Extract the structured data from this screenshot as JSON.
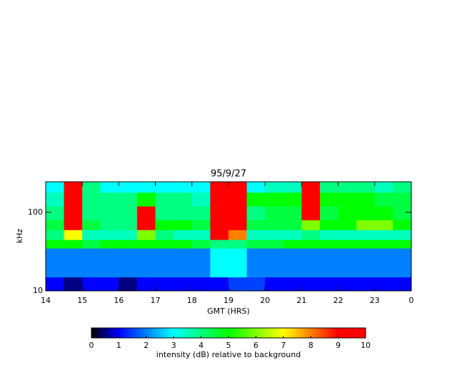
{
  "chart_data": {
    "type": "heatmap",
    "title": "95/9/27",
    "xlabel": "GMT (HRS)",
    "ylabel": "kHz",
    "xlim": [
      14,
      24
    ],
    "xticks": [
      14,
      15,
      16,
      17,
      18,
      19,
      20,
      21,
      22,
      23,
      {
        "value": 24,
        "label": "0"
      }
    ],
    "ylim": [
      10,
      245
    ],
    "yticks": [
      10,
      100
    ],
    "log_y": true,
    "x_edges": [
      14,
      14.5,
      15,
      15.5,
      16,
      16.5,
      17,
      17.5,
      18,
      18.5,
      19,
      19.5,
      20,
      20.5,
      21,
      21.5,
      22,
      22.5,
      23,
      23.5,
      24
    ],
    "y_edges": [
      10,
      15,
      35,
      45,
      60,
      80,
      120,
      180,
      245
    ],
    "z": [
      [
        1,
        0.5,
        1,
        1,
        0.5,
        1,
        1,
        1,
        1,
        1,
        1.5,
        1.5,
        1,
        1,
        1,
        1,
        1,
        1,
        1,
        1
      ],
      [
        2,
        2,
        2,
        2,
        2,
        2,
        2,
        2,
        2,
        3,
        3,
        2,
        2,
        2,
        2,
        2,
        2,
        2,
        2,
        2
      ],
      [
        5,
        5,
        4.5,
        5,
        5,
        5,
        5,
        5,
        4.5,
        4,
        4,
        4.5,
        4.5,
        5,
        5,
        5,
        5,
        5,
        5,
        5
      ],
      [
        4,
        7,
        3.5,
        3.5,
        3.5,
        6,
        4,
        3.5,
        3.5,
        9,
        8,
        3.5,
        3.5,
        3.5,
        4,
        3.5,
        3.5,
        3.5,
        3.5,
        3.5
      ],
      [
        4.5,
        9.5,
        4.5,
        4,
        4,
        9,
        5,
        5,
        4.5,
        10,
        10,
        4.5,
        4.5,
        4.5,
        6,
        5,
        5,
        6,
        6,
        5
      ],
      [
        4,
        10,
        4,
        4,
        4,
        9.5,
        4,
        4,
        4,
        10,
        10,
        4,
        4.5,
        4.5,
        9.5,
        4.5,
        5,
        5,
        5,
        4.5
      ],
      [
        3.5,
        10,
        4,
        4,
        4,
        5,
        4,
        4,
        3.5,
        10,
        10,
        5,
        5,
        5,
        10,
        5,
        5,
        5,
        4.5,
        4.5
      ],
      [
        3,
        10,
        4,
        3,
        3,
        3,
        3,
        3,
        3,
        10,
        9,
        3,
        3.5,
        3.5,
        10,
        4,
        4,
        4,
        3.5,
        4
      ]
    ],
    "colorbar": {
      "label": "intensity (dB) relative to background",
      "lim": [
        0,
        10
      ],
      "ticks": [
        0,
        1,
        2,
        3,
        4,
        5,
        6,
        7,
        8,
        9,
        10
      ],
      "stops": [
        [
          0,
          "#000000"
        ],
        [
          1,
          "#0000ff"
        ],
        [
          3,
          "#00ffff"
        ],
        [
          5,
          "#00ff00"
        ],
        [
          7,
          "#ffff00"
        ],
        [
          9,
          "#ff0000"
        ],
        [
          10,
          "#ff0000"
        ]
      ]
    }
  }
}
